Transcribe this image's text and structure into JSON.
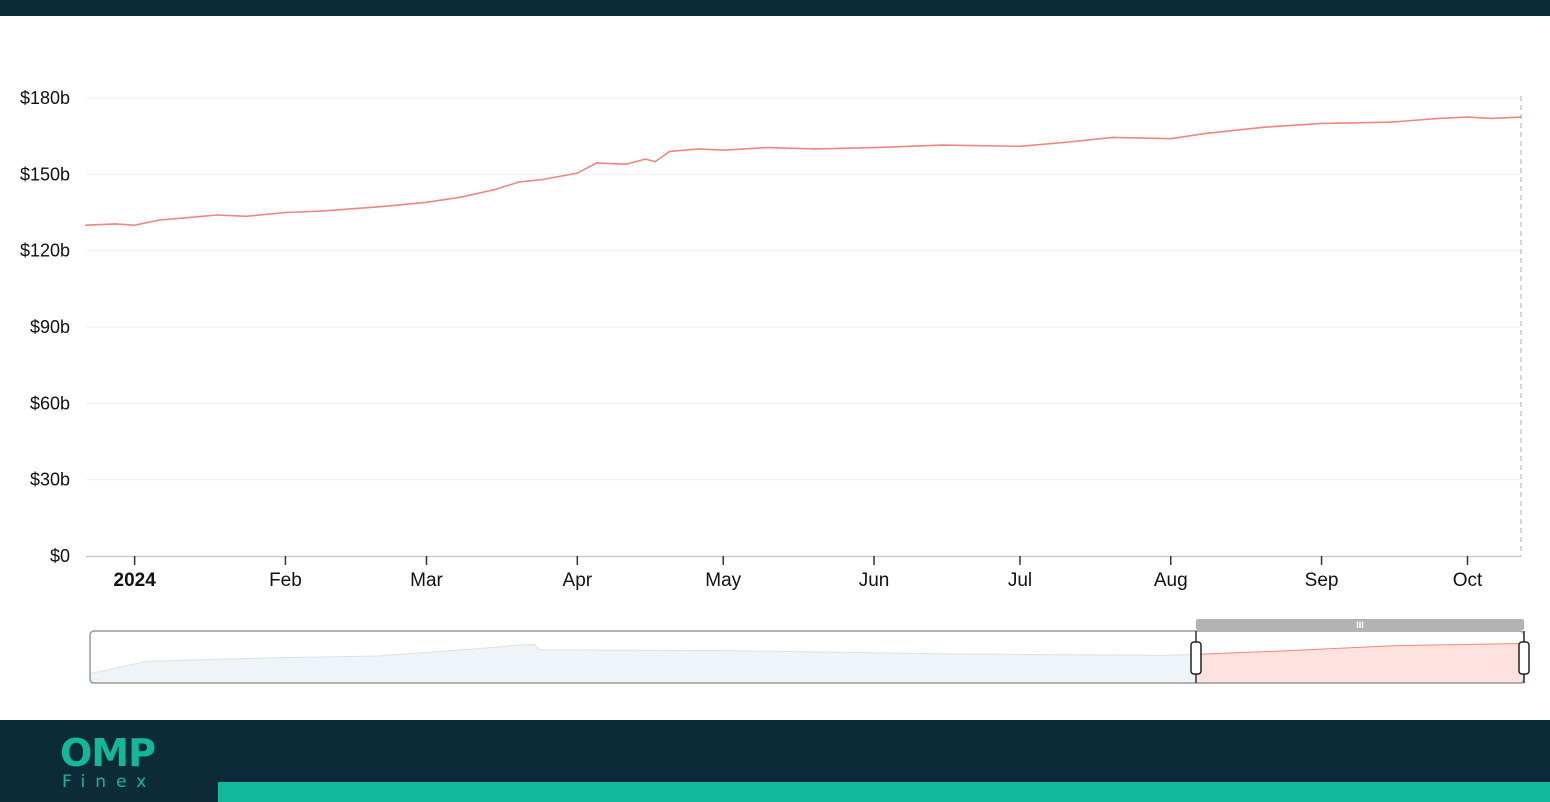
{
  "chart_data": {
    "type": "line",
    "ylim": [
      0,
      180
    ],
    "y_ticks": [
      {
        "value": 0,
        "label": "$0"
      },
      {
        "value": 30,
        "label": "$30b"
      },
      {
        "value": 60,
        "label": "$60b"
      },
      {
        "value": 90,
        "label": "$90b"
      },
      {
        "value": 120,
        "label": "$120b"
      },
      {
        "value": 150,
        "label": "$150b"
      },
      {
        "value": 180,
        "label": "$180b"
      }
    ],
    "xlim": [
      "2023-12-22",
      "2024-10-12"
    ],
    "x_ticks": [
      {
        "date": "2024-01-01",
        "label": "2024",
        "bold": true
      },
      {
        "date": "2024-02-01",
        "label": "Feb"
      },
      {
        "date": "2024-03-01",
        "label": "Mar"
      },
      {
        "date": "2024-04-01",
        "label": "Apr"
      },
      {
        "date": "2024-05-01",
        "label": "May"
      },
      {
        "date": "2024-06-01",
        "label": "Jun"
      },
      {
        "date": "2024-07-01",
        "label": "Jul"
      },
      {
        "date": "2024-08-01",
        "label": "Aug"
      },
      {
        "date": "2024-09-01",
        "label": "Sep"
      },
      {
        "date": "2024-10-01",
        "label": "Oct"
      }
    ],
    "series": [
      {
        "color": "#f0877e",
        "points": [
          [
            "2023-12-22",
            130
          ],
          [
            "2023-12-28",
            130.5
          ],
          [
            "2024-01-01",
            130
          ],
          [
            "2024-01-06",
            132
          ],
          [
            "2024-01-12",
            133
          ],
          [
            "2024-01-18",
            134
          ],
          [
            "2024-01-24",
            133.5
          ],
          [
            "2024-02-01",
            135
          ],
          [
            "2024-02-08",
            135.5
          ],
          [
            "2024-02-15",
            136.5
          ],
          [
            "2024-02-22",
            137.5
          ],
          [
            "2024-03-01",
            139
          ],
          [
            "2024-03-08",
            141
          ],
          [
            "2024-03-15",
            144
          ],
          [
            "2024-03-20",
            147
          ],
          [
            "2024-03-25",
            148
          ],
          [
            "2024-04-01",
            150.5
          ],
          [
            "2024-04-05",
            154.5
          ],
          [
            "2024-04-11",
            154
          ],
          [
            "2024-04-15",
            156
          ],
          [
            "2024-04-17",
            155
          ],
          [
            "2024-04-20",
            159
          ],
          [
            "2024-04-26",
            160
          ],
          [
            "2024-05-01",
            159.5
          ],
          [
            "2024-05-10",
            160.5
          ],
          [
            "2024-05-20",
            160
          ],
          [
            "2024-06-01",
            160.5
          ],
          [
            "2024-06-15",
            161.5
          ],
          [
            "2024-07-01",
            161
          ],
          [
            "2024-07-10",
            162.5
          ],
          [
            "2024-07-20",
            164.5
          ],
          [
            "2024-08-01",
            164
          ],
          [
            "2024-08-08",
            166
          ],
          [
            "2024-08-20",
            168.5
          ],
          [
            "2024-09-01",
            170
          ],
          [
            "2024-09-15",
            170.5
          ],
          [
            "2024-09-25",
            172
          ],
          [
            "2024-10-01",
            172.5
          ],
          [
            "2024-10-06",
            172
          ],
          [
            "2024-10-12",
            172.5
          ]
        ]
      }
    ],
    "legend": "none",
    "grid": true
  },
  "navigator": {
    "handle_grip": "III",
    "background_series_color": "#dfe9ef",
    "selected_fill_color": "#fde2e0"
  },
  "branding": {
    "logo_mark": "OMP",
    "logo_text": "Finex",
    "accent_color": "#12b89a",
    "background_color": "#0c2a38"
  }
}
